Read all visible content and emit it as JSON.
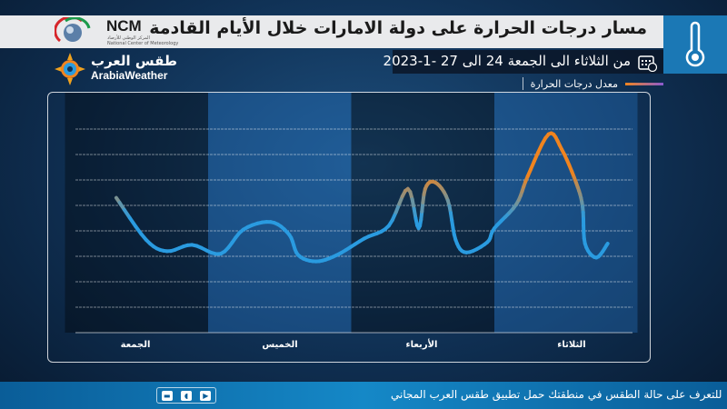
{
  "header": {
    "title": "مسار درجات الحرارة على دولة الامارات خلال الأيام القادمة",
    "date_range": "من الثلاثاء الى الجمعة  24 الى 27 -1-2023",
    "legend": "معدل درجات الحرارة"
  },
  "brand": {
    "ncm": "NCM",
    "ncm_sub_ar": "المركز الوطني للأرصاد",
    "ncm_sub_en": "National Center of Meteorology",
    "arabia_ar": "طقس العرب",
    "arabia_en": "ArabiaWeather"
  },
  "icons": {
    "main": "thermometer-icon",
    "date": "calendar-clock-icon"
  },
  "footer": {
    "text": "للتعرف على حالة الطقس في منطقتك حمل تطبيق طقس العرب المجاني"
  },
  "colors": {
    "cool": "#2a9be0",
    "warm": "#f0841f",
    "footer": "#1588c7"
  },
  "chart_data": {
    "type": "line",
    "title": "مسار درجات الحرارة على دولة الامارات خلال الأيام القادمة",
    "series": [
      {
        "name": "معدل درجات الحرارة",
        "points": [
          [
            8.6,
            20.6
          ],
          [
            13.6,
            17.3
          ],
          [
            17.1,
            16.4
          ],
          [
            21.3,
            16.9
          ],
          [
            26.1,
            16.2
          ],
          [
            29.9,
            18.1
          ],
          [
            34.5,
            18.7
          ],
          [
            37.6,
            17.7
          ],
          [
            39.1,
            16.1
          ],
          [
            42.1,
            15.6
          ],
          [
            45.6,
            16.1
          ],
          [
            50.2,
            17.4
          ],
          [
            54.3,
            18.4
          ],
          [
            57.5,
            21.3
          ],
          [
            59.3,
            18.2
          ],
          [
            60.4,
            21.3
          ],
          [
            62.1,
            21.8
          ],
          [
            64.2,
            20.4
          ],
          [
            65.5,
            17.3
          ],
          [
            67.3,
            16.3
          ],
          [
            70.8,
            17.1
          ],
          [
            72.0,
            18.2
          ],
          [
            75.7,
            20.1
          ],
          [
            77.6,
            22.3
          ],
          [
            81.1,
            25.6
          ],
          [
            83.3,
            24.4
          ],
          [
            85.7,
            21.8
          ],
          [
            86.8,
            19.9
          ],
          [
            87.2,
            17.0
          ],
          [
            89.1,
            15.9
          ],
          [
            91.0,
            17.0
          ]
        ]
      }
    ],
    "categories": [
      "الجمعة",
      "الخميس",
      "الأربعاء",
      "الثلاثاء"
    ],
    "yticks": [
      12,
      14,
      16,
      18,
      20,
      22,
      24,
      26
    ],
    "ylim": [
      10,
      27
    ],
    "xlim": [
      0,
      96
    ],
    "xunit": "hours",
    "grid": true,
    "y_axis_side": "right"
  }
}
